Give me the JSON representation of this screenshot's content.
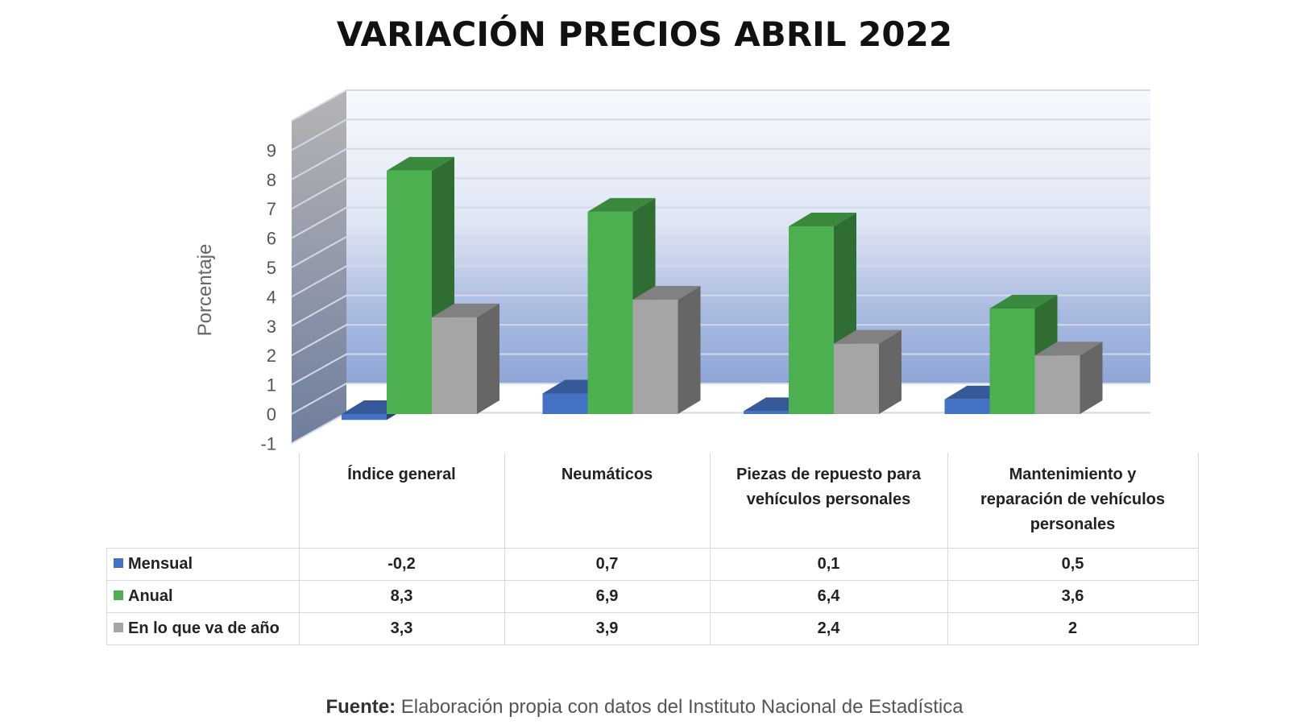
{
  "chart_data": {
    "type": "bar",
    "title": "VARIACIÓN PRECIOS ABRIL 2022",
    "ylabel": "Porcentaje",
    "xlabel": "",
    "ylim": [
      -1,
      9
    ],
    "yticks": [
      "-1",
      "0",
      "1",
      "2",
      "3",
      "4",
      "5",
      "6",
      "7",
      "8",
      "9"
    ],
    "grid": true,
    "legend": "table-rows",
    "categories": [
      "Índice general",
      "Neumáticos",
      "Piezas de repuesto para vehículos personales",
      "Mantenimiento y reparación de vehículos personales"
    ],
    "series": [
      {
        "name": "Mensual",
        "values": [
          -0.2,
          0.7,
          0.1,
          0.5
        ],
        "color": "#4472c4"
      },
      {
        "name": "Anual",
        "values": [
          8.3,
          6.9,
          6.4,
          3.6
        ],
        "color": "#4caf50"
      },
      {
        "name": "En lo que va de año",
        "values": [
          3.3,
          3.9,
          2.4,
          2
        ],
        "color": "#a5a5a5"
      }
    ]
  },
  "table": {
    "rows": [
      {
        "label": "Mensual",
        "cells": [
          "-0,2",
          "0,7",
          "0,1",
          "0,5"
        ]
      },
      {
        "label": "Anual",
        "cells": [
          "8,3",
          "6,9",
          "6,4",
          "3,6"
        ]
      },
      {
        "label": "En lo que va de año",
        "cells": [
          "3,3",
          "3,9",
          "2,4",
          "2"
        ]
      }
    ]
  },
  "source": {
    "label": "Fuente:",
    "text": " Elaboración propia con datos del Instituto Nacional de Estadística"
  }
}
